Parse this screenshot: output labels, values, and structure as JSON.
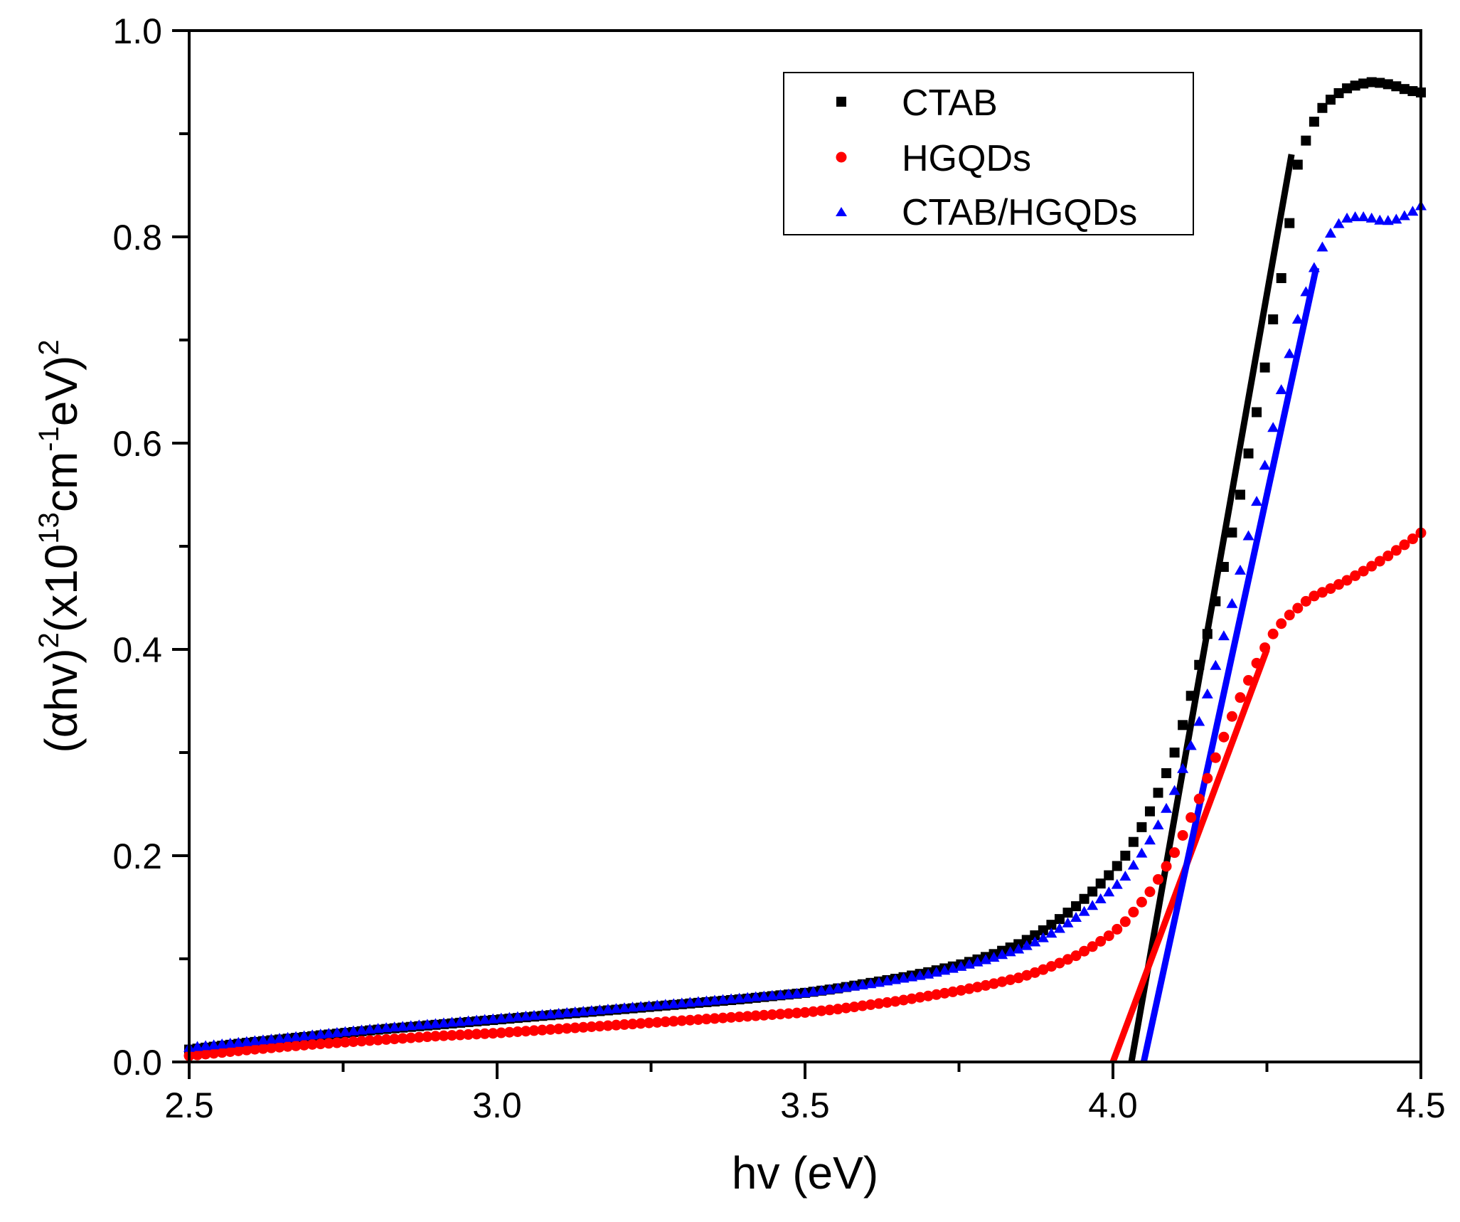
{
  "chart_data": {
    "type": "scatter",
    "title": "",
    "xlabel": "hv (eV)",
    "ylabel": {
      "base": "(",
      "alpha": "α",
      "mid1": "hv)",
      "sup1": "2",
      "mid2": "(x10",
      "sup2": "13",
      "mid3": "cm",
      "sup3": "-1",
      "mid4": "eV)",
      "sup4": "2"
    },
    "xlim": [
      2.5,
      4.5
    ],
    "ylim": [
      0.0,
      1.0
    ],
    "xticks": [
      "2.5",
      "3.0",
      "3.5",
      "4.0",
      "4.5"
    ],
    "yticks": [
      "0.0",
      "0.2",
      "0.4",
      "0.6",
      "0.8",
      "1.0"
    ],
    "legend_position": "top-right",
    "series": [
      {
        "name": "CTAB",
        "marker": "square",
        "color": "#000000",
        "x": [
          2.5,
          2.6,
          2.7,
          2.8,
          2.9,
          3.0,
          3.1,
          3.2,
          3.3,
          3.4,
          3.5,
          3.55,
          3.6,
          3.65,
          3.7,
          3.75,
          3.8,
          3.85,
          3.88,
          3.91,
          3.94,
          3.97,
          4.0,
          4.02,
          4.04,
          4.06,
          4.08,
          4.1,
          4.12,
          4.14,
          4.16,
          4.18,
          4.2,
          4.22,
          4.24,
          4.26,
          4.28,
          4.29,
          4.3,
          4.32,
          4.34,
          4.36,
          4.38,
          4.4,
          4.42,
          4.44,
          4.46,
          4.48,
          4.5
        ],
        "y": [
          0.012,
          0.019,
          0.025,
          0.031,
          0.036,
          0.041,
          0.046,
          0.051,
          0.056,
          0.061,
          0.067,
          0.071,
          0.076,
          0.081,
          0.087,
          0.094,
          0.103,
          0.115,
          0.125,
          0.137,
          0.151,
          0.167,
          0.185,
          0.2,
          0.22,
          0.243,
          0.27,
          0.3,
          0.34,
          0.385,
          0.43,
          0.48,
          0.53,
          0.59,
          0.65,
          0.72,
          0.78,
          0.83,
          0.87,
          0.905,
          0.925,
          0.937,
          0.944,
          0.948,
          0.95,
          0.949,
          0.946,
          0.942,
          0.94
        ]
      },
      {
        "name": "HGQDs",
        "marker": "circle",
        "color": "#ff0000",
        "x": [
          2.5,
          2.6,
          2.7,
          2.8,
          2.9,
          3.0,
          3.1,
          3.2,
          3.3,
          3.4,
          3.5,
          3.55,
          3.6,
          3.65,
          3.7,
          3.75,
          3.8,
          3.85,
          3.88,
          3.91,
          3.94,
          3.97,
          4.0,
          4.02,
          4.04,
          4.06,
          4.08,
          4.1,
          4.12,
          4.14,
          4.16,
          4.18,
          4.2,
          4.22,
          4.24,
          4.26,
          4.28,
          4.3,
          4.32,
          4.35,
          4.38,
          4.41,
          4.44,
          4.47,
          4.5
        ],
        "y": [
          0.006,
          0.012,
          0.017,
          0.021,
          0.025,
          0.028,
          0.032,
          0.036,
          0.04,
          0.044,
          0.048,
          0.051,
          0.055,
          0.059,
          0.064,
          0.069,
          0.075,
          0.082,
          0.088,
          0.095,
          0.103,
          0.113,
          0.125,
          0.136,
          0.15,
          0.165,
          0.183,
          0.203,
          0.228,
          0.255,
          0.285,
          0.315,
          0.345,
          0.37,
          0.395,
          0.415,
          0.43,
          0.44,
          0.45,
          0.458,
          0.467,
          0.477,
          0.488,
          0.5,
          0.513
        ]
      },
      {
        "name": "CTAB/HGQDs",
        "marker": "triangle",
        "color": "#0000ff",
        "x": [
          2.5,
          2.6,
          2.7,
          2.8,
          2.9,
          3.0,
          3.1,
          3.2,
          3.3,
          3.4,
          3.5,
          3.55,
          3.6,
          3.65,
          3.7,
          3.75,
          3.8,
          3.85,
          3.88,
          3.91,
          3.94,
          3.97,
          4.0,
          4.02,
          4.04,
          4.06,
          4.08,
          4.1,
          4.12,
          4.14,
          4.16,
          4.18,
          4.2,
          4.22,
          4.24,
          4.26,
          4.28,
          4.3,
          4.32,
          4.34,
          4.36,
          4.38,
          4.4,
          4.42,
          4.44,
          4.46,
          4.48,
          4.5
        ],
        "y": [
          0.014,
          0.02,
          0.026,
          0.032,
          0.037,
          0.042,
          0.047,
          0.052,
          0.057,
          0.062,
          0.067,
          0.071,
          0.075,
          0.08,
          0.085,
          0.092,
          0.1,
          0.11,
          0.118,
          0.128,
          0.14,
          0.153,
          0.168,
          0.18,
          0.196,
          0.215,
          0.237,
          0.263,
          0.295,
          0.33,
          0.37,
          0.413,
          0.46,
          0.51,
          0.56,
          0.615,
          0.67,
          0.72,
          0.76,
          0.79,
          0.81,
          0.818,
          0.82,
          0.818,
          0.815,
          0.817,
          0.822,
          0.83
        ]
      }
    ],
    "fit_lines": [
      {
        "name": "CTAB fit",
        "color": "#000000",
        "x": [
          4.03,
          4.29
        ],
        "y": [
          0.0,
          0.88
        ]
      },
      {
        "name": "HGQDs fit",
        "color": "#ff0000",
        "x": [
          4.0,
          4.25
        ],
        "y": [
          0.0,
          0.4
        ]
      },
      {
        "name": "CTAB/HGQDs fit",
        "color": "#0000ff",
        "x": [
          4.05,
          4.33
        ],
        "y": [
          0.0,
          0.77
        ]
      }
    ]
  }
}
